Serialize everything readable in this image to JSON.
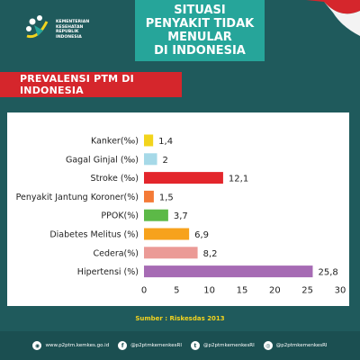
{
  "header": {
    "logo_text": "KEMENTERIAN\nKESEHATAN\nREPUBLIK\nINDONESIA",
    "title": "SITUASI\nPENYAKIT TIDAK MENULAR\nDI INDONESIA"
  },
  "banner": {
    "label": "PREVALENSI PTM DI INDONESIA"
  },
  "source": "Sumber : Riskesdas 2013",
  "footer": {
    "website": "www.p2ptm.kemkes.go.id",
    "facebook": "@p2ptmkemenkesRI",
    "twitter": "@p2ptmkemenkesRI",
    "instagram": "@p2ptmkemenkesRI"
  },
  "colors": {
    "background": "#1f5a5c",
    "title_box": "#26a59a",
    "banner": "#d5262c",
    "source_text": "#f2d31e"
  },
  "chart_data": {
    "type": "bar",
    "orientation": "horizontal",
    "categories": [
      "Kanker(‰)",
      "Gagal Ginjal (‰)",
      "Stroke (‰)",
      "Penyakit Jantung Koroner(%)",
      "PPOK(%)",
      "Diabetes Melitus (%)",
      "Cedera(%)",
      "Hipertensi (%)"
    ],
    "values": [
      1.4,
      2,
      12.1,
      1.5,
      3.7,
      6.9,
      8.2,
      25.8
    ],
    "value_labels": [
      "1,4",
      "2",
      "12,1",
      "1,5",
      "3,7",
      "6,9",
      "8,2",
      "25,8"
    ],
    "bar_colors": [
      "#f2d41c",
      "#a6d9e8",
      "#e3262c",
      "#f47a36",
      "#5cb947",
      "#f7a21c",
      "#eb9a96",
      "#a66bb4"
    ],
    "xlim": [
      0,
      30
    ],
    "xticks": [
      0,
      5,
      10,
      15,
      20,
      25,
      30
    ],
    "grid": false,
    "legend": "none"
  }
}
